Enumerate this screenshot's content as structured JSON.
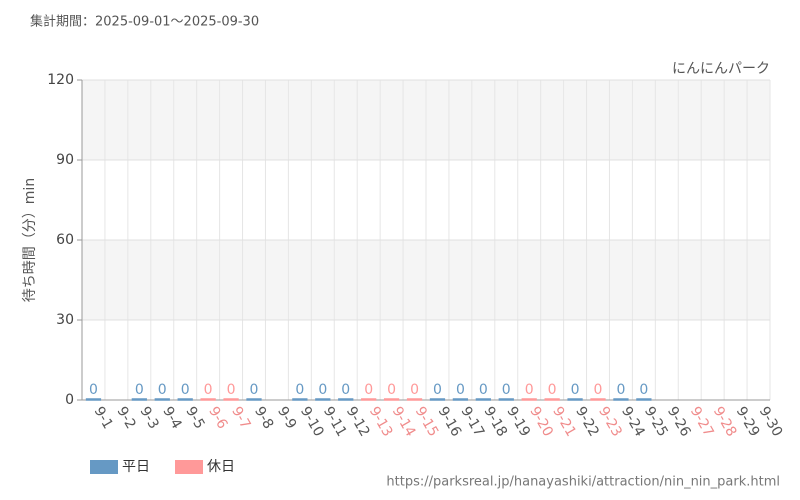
{
  "chart_data": {
    "type": "bar",
    "subtitle": "集計期間：2025-09-01～2025-09-30",
    "title": "にんにんパーク",
    "y_label": "待ち時間（分）min",
    "source": "https://parksreal.jp/hanayashiki/attraction/nin_nin_park.html",
    "categories": [
      "9-1",
      "9-2",
      "9-3",
      "9-4",
      "9-5",
      "9-6",
      "9-7",
      "9-8",
      "9-9",
      "9-10",
      "9-11",
      "9-12",
      "9-13",
      "9-14",
      "9-15",
      "9-16",
      "9-17",
      "9-18",
      "9-19",
      "9-20",
      "9-21",
      "9-22",
      "9-23",
      "9-24",
      "9-25",
      "9-26",
      "9-27",
      "9-28",
      "9-29",
      "9-30"
    ],
    "category_colors": [
      "#555",
      "#555",
      "#555",
      "#555",
      "#555",
      "#f08c8c",
      "#f08c8c",
      "#555",
      "#555",
      "#555",
      "#555",
      "#555",
      "#f08c8c",
      "#f08c8c",
      "#f08c8c",
      "#555",
      "#555",
      "#555",
      "#555",
      "#f08c8c",
      "#f08c8c",
      "#555",
      "#f08c8c",
      "#555",
      "#555",
      "#555",
      "#f08c8c",
      "#f08c8c",
      "#555",
      "#555"
    ],
    "series": [
      {
        "name": "平日",
        "color": "#6699c4",
        "values": [
          0,
          null,
          0,
          0,
          0,
          null,
          null,
          0,
          null,
          0,
          0,
          0,
          null,
          null,
          null,
          0,
          0,
          0,
          0,
          null,
          null,
          0,
          null,
          0,
          0,
          null,
          null,
          null,
          null,
          null
        ]
      },
      {
        "name": "休日",
        "color": "#ff9999",
        "values": [
          null,
          null,
          null,
          null,
          null,
          0,
          0,
          null,
          null,
          null,
          null,
          null,
          0,
          0,
          0,
          null,
          null,
          null,
          null,
          0,
          0,
          null,
          0,
          null,
          null,
          null,
          null,
          null,
          null,
          null
        ]
      }
    ],
    "ylim": [
      0,
      120
    ],
    "yticks": [
      0,
      30,
      60,
      90,
      120
    ],
    "grid": true
  }
}
